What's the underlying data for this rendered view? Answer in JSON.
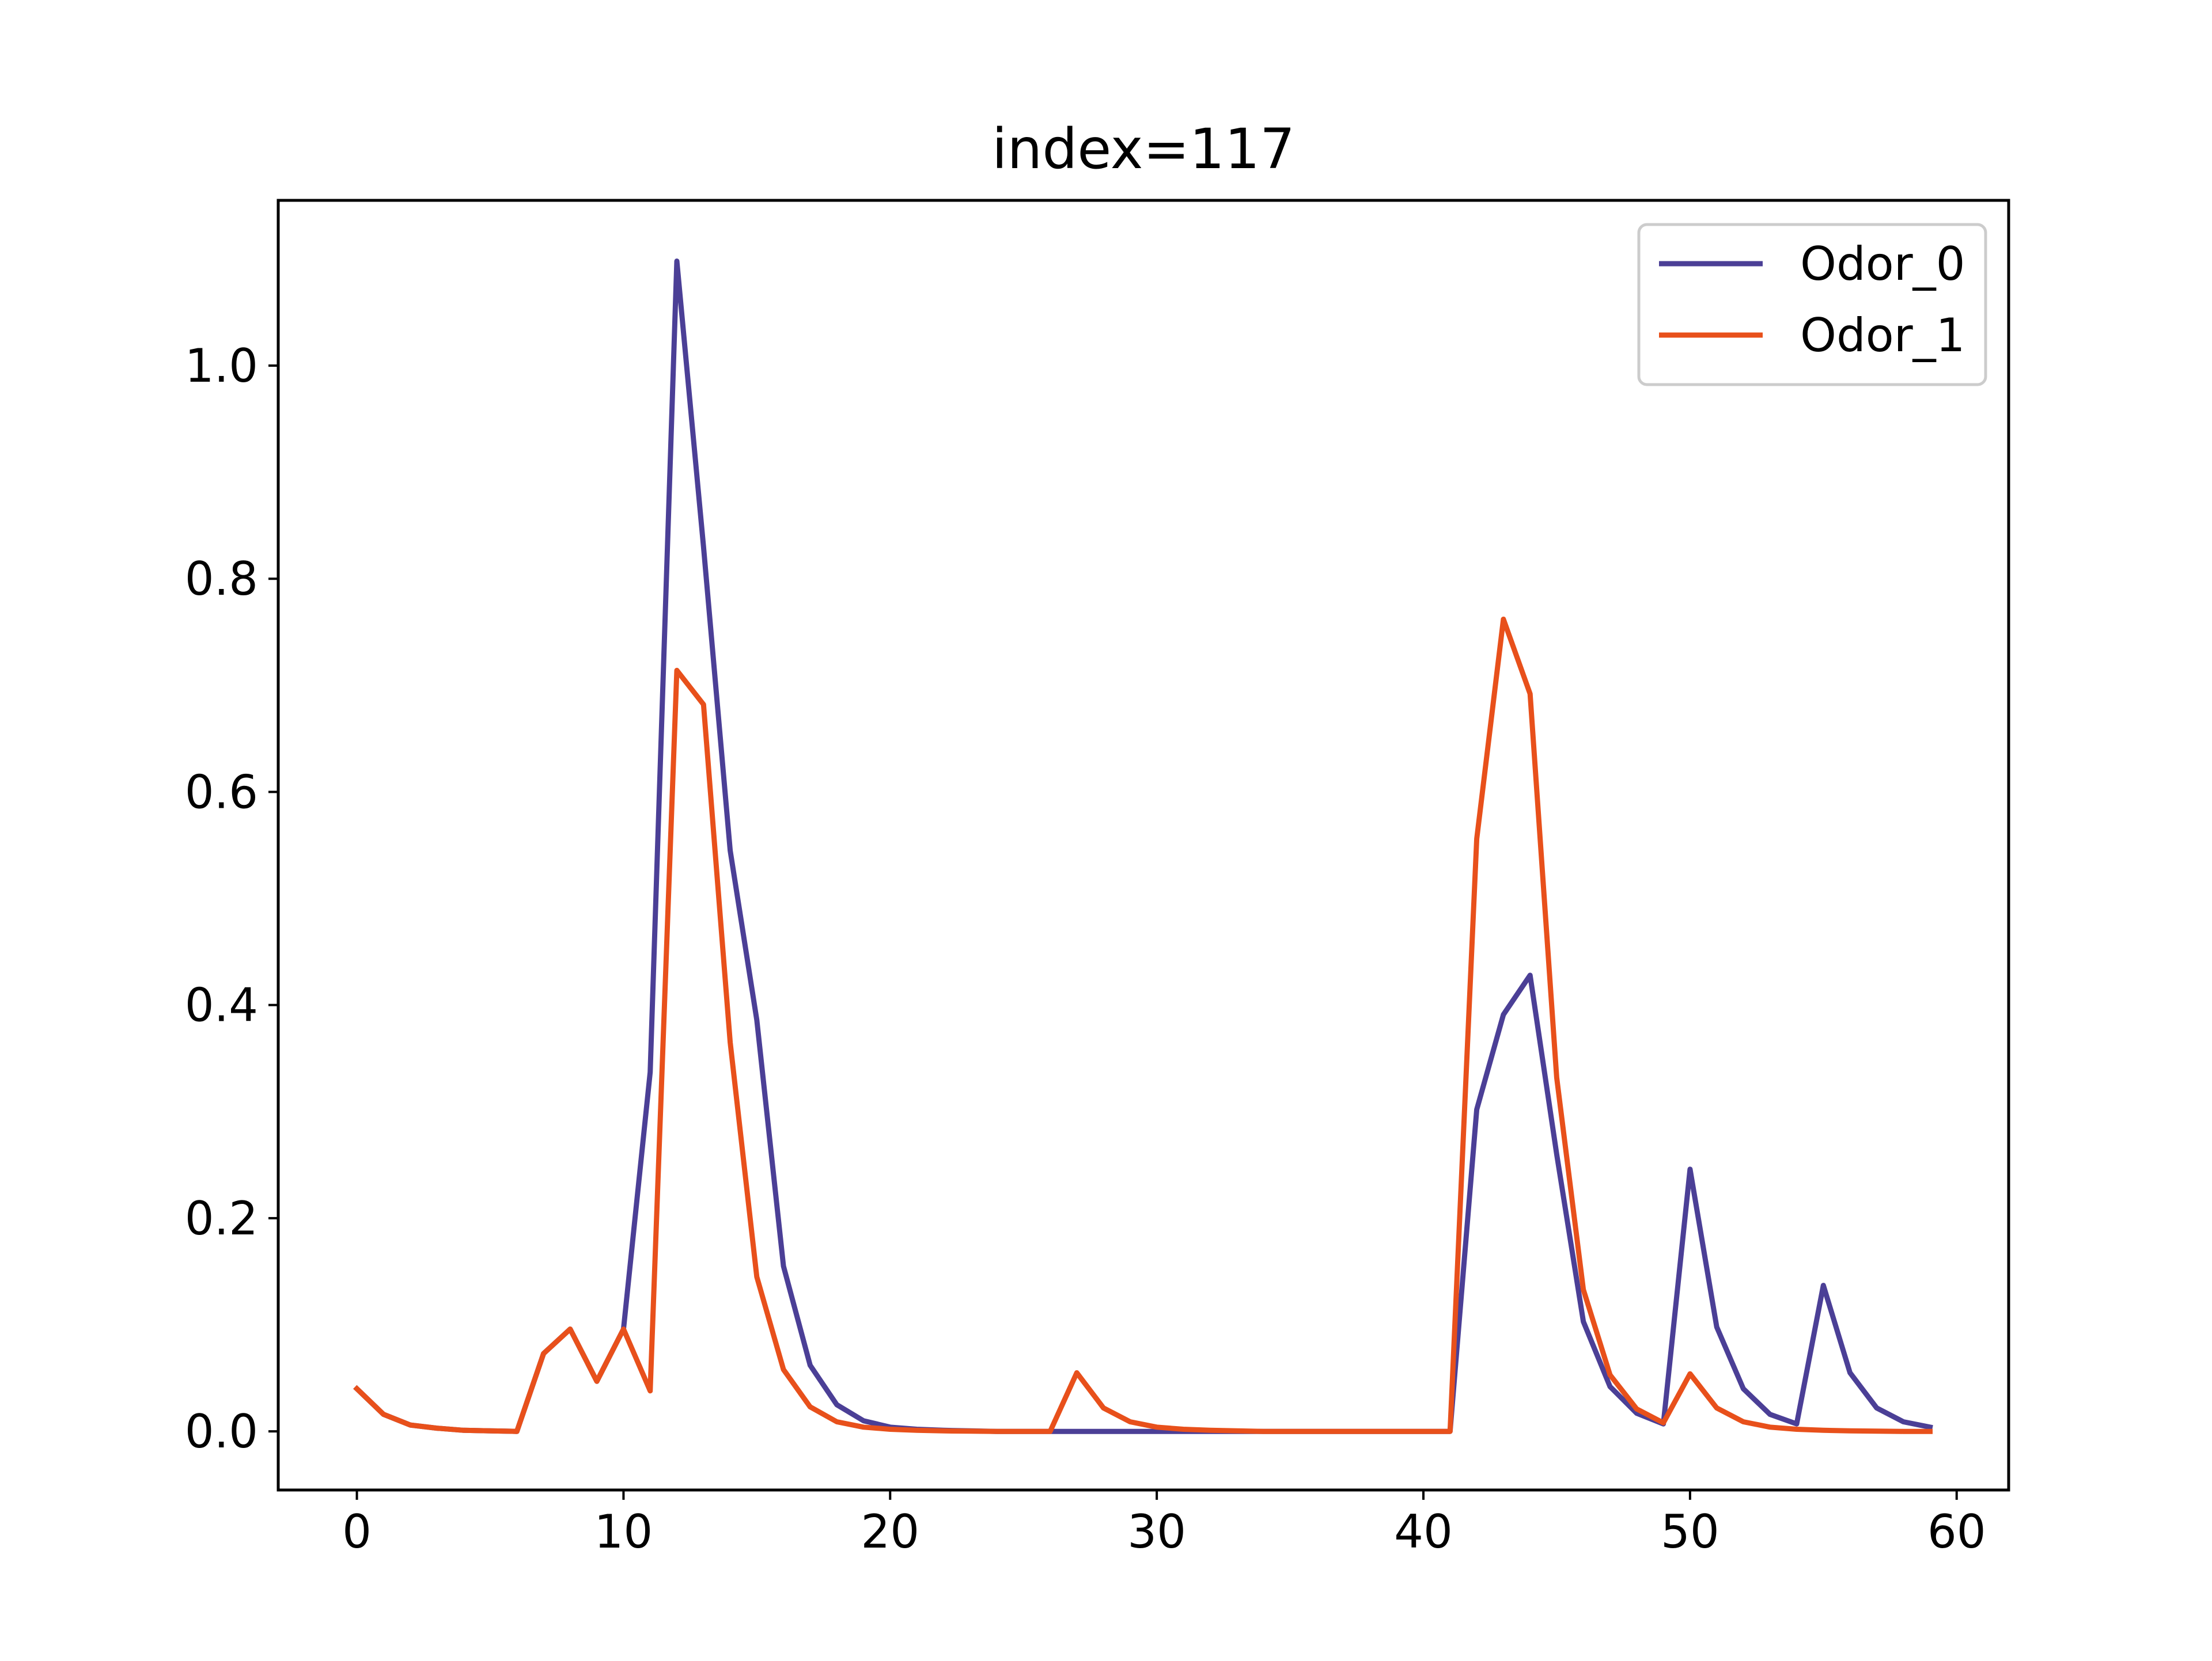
{
  "chart_data": {
    "type": "line",
    "title": "index=117",
    "xlabel": "",
    "ylabel": "",
    "xlim": [
      -2.95,
      61.95
    ],
    "ylim": [
      -0.055,
      1.155
    ],
    "xticks": [
      0,
      10,
      20,
      30,
      40,
      50,
      60
    ],
    "yticks": [
      0.0,
      0.2,
      0.4,
      0.6,
      0.8,
      1.0
    ],
    "xtick_labels": [
      "0",
      "10",
      "20",
      "30",
      "40",
      "50",
      "60"
    ],
    "ytick_labels": [
      "0.0",
      "0.2",
      "0.4",
      "0.6",
      "0.8",
      "1.0"
    ],
    "grid": false,
    "legend_position": "top-right",
    "x": [
      0,
      1,
      2,
      3,
      4,
      5,
      6,
      7,
      8,
      9,
      10,
      11,
      12,
      13,
      14,
      15,
      16,
      17,
      18,
      19,
      20,
      21,
      22,
      23,
      24,
      25,
      26,
      27,
      28,
      29,
      30,
      31,
      32,
      33,
      34,
      35,
      36,
      37,
      38,
      39,
      40,
      41,
      42,
      43,
      44,
      45,
      46,
      47,
      48,
      49,
      50,
      51,
      52,
      53,
      54,
      55,
      56,
      57,
      58,
      59
    ],
    "series": [
      {
        "name": "Odor_0",
        "color": "#4b3f96",
        "values": [
          0.04,
          0.016,
          0.006,
          0.003,
          0.001,
          0.0005,
          0.0,
          0.073,
          0.096,
          0.047,
          0.096,
          0.337,
          1.098,
          0.83,
          0.545,
          0.386,
          0.155,
          0.062,
          0.025,
          0.01,
          0.004,
          0.002,
          0.001,
          0.0005,
          0.0,
          0.0,
          0.0,
          0.0,
          0.0,
          0.0,
          0.0,
          0.0,
          0.0,
          0.0,
          0.0,
          0.0,
          0.0,
          0.0,
          0.0,
          0.0,
          0.0,
          0.0,
          0.302,
          0.391,
          0.428,
          0.26,
          0.103,
          0.042,
          0.017,
          0.007,
          0.246,
          0.098,
          0.04,
          0.016,
          0.007,
          0.137,
          0.055,
          0.022,
          0.009,
          0.004
        ]
      },
      {
        "name": "Odor_1",
        "color": "#e8501b",
        "values": [
          0.04,
          0.016,
          0.006,
          0.003,
          0.001,
          0.0005,
          0.0,
          0.073,
          0.096,
          0.047,
          0.096,
          0.038,
          0.714,
          0.682,
          0.365,
          0.145,
          0.058,
          0.023,
          0.009,
          0.004,
          0.002,
          0.001,
          0.0005,
          0.0002,
          0.0,
          0.0,
          0.0,
          0.055,
          0.022,
          0.009,
          0.004,
          0.002,
          0.001,
          0.0005,
          0.0,
          0.0,
          0.0,
          0.0,
          0.0,
          0.0,
          0.0,
          0.0,
          0.556,
          0.762,
          0.692,
          0.332,
          0.133,
          0.053,
          0.021,
          0.008,
          0.054,
          0.022,
          0.009,
          0.004,
          0.002,
          0.001,
          0.0005,
          0.0002,
          0.0,
          0.0
        ]
      }
    ]
  }
}
